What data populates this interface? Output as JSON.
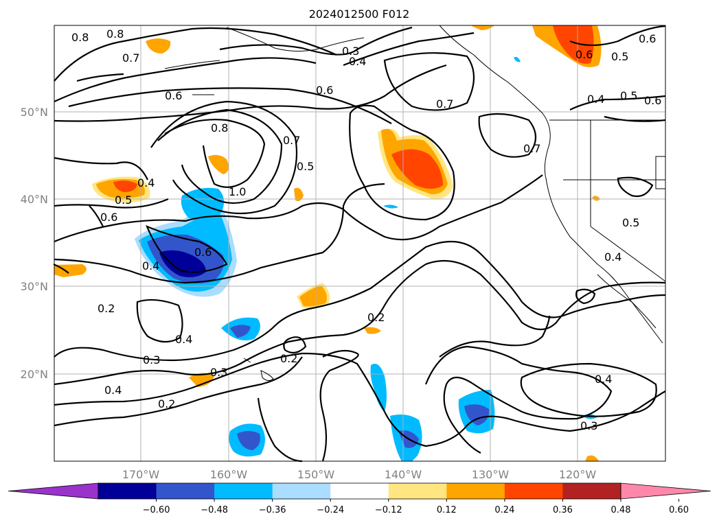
{
  "title": "2024012500 F012",
  "lat_labels": [
    "50°N",
    "40°N",
    "30°N",
    "20°N"
  ],
  "lon_labels": [
    "170°W",
    "160°W",
    "150°W",
    "140°W",
    "130°W",
    "120°W"
  ],
  "colorbar": {
    "ticks": [
      "−0.60",
      "−0.48",
      "−0.36",
      "−0.24",
      "−0.12",
      "0.12",
      "0.24",
      "0.36",
      "0.48",
      "0.60"
    ],
    "colors": [
      "#9933cc",
      "#000099",
      "#3355cc",
      "#00bbff",
      "#aaddff",
      "#ffffff",
      "#ffe680",
      "#ffa500",
      "#ff4500",
      "#b22222",
      "#ff88aa"
    ]
  },
  "contour_labels": [
    "0.8",
    "0.8",
    "0.7",
    "0.6",
    "0.3",
    "0.4",
    "0.6",
    "0.7",
    "0.6",
    "0.6",
    "0.5",
    "0.4",
    "0.5",
    "0.6",
    "0.8",
    "0.7",
    "0.5",
    "0.7",
    "0.4",
    "0.5",
    "0.6",
    "1.0",
    "0.6",
    "0.4",
    "0.2",
    "0.4",
    "0.3",
    "0.2",
    "0.3",
    "0.2",
    "0.4",
    "0.2",
    "0.4",
    "0.3",
    "0.5",
    "0.4"
  ],
  "colors": {
    "contour": "#000000",
    "grid": "#b0b0b0",
    "axis_label": "#808080"
  }
}
